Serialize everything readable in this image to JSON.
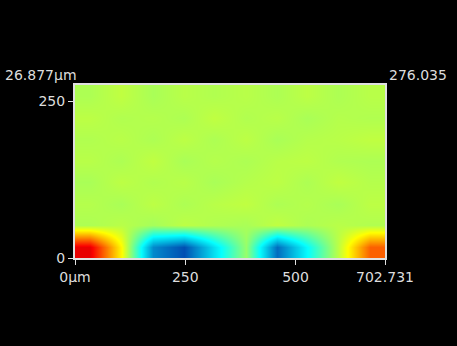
{
  "chart_data": {
    "type": "heatmap",
    "x": [
      35,
      105,
      176,
      246,
      316,
      387,
      457,
      527,
      597,
      668
    ],
    "y": [
      17,
      52,
      86,
      121,
      155,
      190,
      224,
      259
    ],
    "z": [
      [
        24,
        17,
        6,
        4,
        9,
        14,
        5,
        10,
        15,
        21
      ],
      [
        14.6,
        14.9,
        14.4,
        15.0,
        14.7,
        14.5,
        15.1,
        14.6,
        14.9,
        14.7
      ],
      [
        14.8,
        14.5,
        15.0,
        14.6,
        14.9,
        15.1,
        14.6,
        14.8,
        14.5,
        15.0
      ],
      [
        14.5,
        15.0,
        14.7,
        14.9,
        14.5,
        14.8,
        15.0,
        14.6,
        15.1,
        14.8
      ],
      [
        14.9,
        14.6,
        15.1,
        14.5,
        14.8,
        14.6,
        14.9,
        15.0,
        14.7,
        14.6
      ],
      [
        14.7,
        14.9,
        14.6,
        15.0,
        14.6,
        15.0,
        14.5,
        14.8,
        14.9,
        15.1
      ],
      [
        15.0,
        14.7,
        14.8,
        14.6,
        15.1,
        14.7,
        14.9,
        14.5,
        14.8,
        14.7
      ],
      [
        14.6,
        15.1,
        14.5,
        14.9,
        14.7,
        14.9,
        14.6,
        15.0,
        14.6,
        14.9
      ]
    ],
    "zlim": [
      0,
      26.877
    ],
    "xlim": [
      0,
      702.731
    ],
    "ylim": [
      0,
      276.035
    ],
    "xticks": [
      {
        "value": 0,
        "label": "0µm"
      },
      250,
      500,
      702.731
    ],
    "yticks": [
      0,
      250
    ],
    "annotations": [
      "26.877µm",
      "276.035"
    ]
  }
}
